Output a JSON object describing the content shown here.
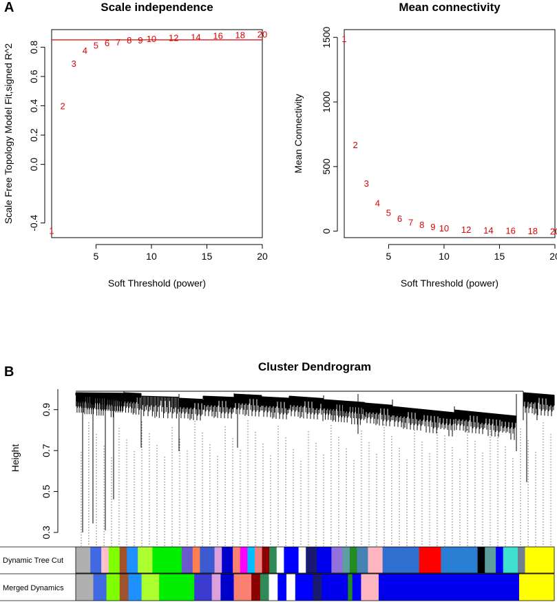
{
  "panels": {
    "a_letter": "A",
    "b_letter": "B"
  },
  "chart_data": [
    {
      "type": "scatter",
      "title": "Scale independence",
      "xlabel": "Soft Threshold (power)",
      "ylabel": "Scale Free Topology Model Fit,signed R^2",
      "xlim": [
        1,
        20
      ],
      "ylim": [
        -0.5,
        0.92
      ],
      "xticks": [
        5,
        10,
        15,
        20
      ],
      "yticks": [
        -0.4,
        0.0,
        0.2,
        0.4,
        0.6,
        0.8
      ],
      "points": [
        {
          "x": 1,
          "y": -0.45,
          "label": "1"
        },
        {
          "x": 2,
          "y": 0.4,
          "label": "2"
        },
        {
          "x": 3,
          "y": 0.69,
          "label": "3"
        },
        {
          "x": 4,
          "y": 0.78,
          "label": "4"
        },
        {
          "x": 5,
          "y": 0.815,
          "label": "5"
        },
        {
          "x": 6,
          "y": 0.83,
          "label": "6"
        },
        {
          "x": 7,
          "y": 0.835,
          "label": "7"
        },
        {
          "x": 8,
          "y": 0.85,
          "label": "8"
        },
        {
          "x": 9,
          "y": 0.85,
          "label": "9"
        },
        {
          "x": 10,
          "y": 0.86,
          "label": "10"
        },
        {
          "x": 12,
          "y": 0.865,
          "label": "12"
        },
        {
          "x": 14,
          "y": 0.87,
          "label": "14"
        },
        {
          "x": 16,
          "y": 0.88,
          "label": "16"
        },
        {
          "x": 18,
          "y": 0.885,
          "label": "18"
        },
        {
          "x": 20,
          "y": 0.89,
          "label": "20"
        }
      ],
      "hline": 0.85,
      "point_color": "#e00000",
      "line_color": "#e00000"
    },
    {
      "type": "scatter",
      "title": "Mean connectivity",
      "xlabel": "Soft Threshold (power)",
      "ylabel": "Mean Connectivity",
      "xlim": [
        1,
        20
      ],
      "ylim": [
        -50,
        1560
      ],
      "xticks": [
        5,
        10,
        15,
        20
      ],
      "yticks": [
        0,
        500,
        1000,
        1500
      ],
      "points": [
        {
          "x": 1,
          "y": 1490,
          "label": "1"
        },
        {
          "x": 2,
          "y": 670,
          "label": "2"
        },
        {
          "x": 3,
          "y": 370,
          "label": "3"
        },
        {
          "x": 4,
          "y": 220,
          "label": "4"
        },
        {
          "x": 5,
          "y": 145,
          "label": "5"
        },
        {
          "x": 6,
          "y": 100,
          "label": "6"
        },
        {
          "x": 7,
          "y": 70,
          "label": "7"
        },
        {
          "x": 8,
          "y": 50,
          "label": "8"
        },
        {
          "x": 9,
          "y": 35,
          "label": "9"
        },
        {
          "x": 10,
          "y": 25,
          "label": "10"
        },
        {
          "x": 12,
          "y": 15,
          "label": "12"
        },
        {
          "x": 14,
          "y": 8,
          "label": "14"
        },
        {
          "x": 16,
          "y": 5,
          "label": "16"
        },
        {
          "x": 18,
          "y": 3,
          "label": "18"
        },
        {
          "x": 20,
          "y": 1,
          "label": "20"
        }
      ],
      "point_color": "#e00000"
    },
    {
      "type": "dendrogram",
      "title": "Cluster Dendrogram",
      "ylabel": "Height",
      "ylim": [
        0.3,
        1.0
      ],
      "yticks": [
        0.3,
        0.5,
        0.7,
        0.9
      ],
      "tracks": [
        {
          "name": "Dynamic Tree Cut",
          "segments": [
            {
              "w": 2,
              "color": "#b0b0b0"
            },
            {
              "w": 1.5,
              "color": "#4169e1"
            },
            {
              "w": 1,
              "color": "#ffc0cb"
            },
            {
              "w": 1.5,
              "color": "#7fff00"
            },
            {
              "w": 1,
              "color": "#a0522d"
            },
            {
              "w": 1.5,
              "color": "#1e90ff"
            },
            {
              "w": 2,
              "color": "#adff2f"
            },
            {
              "w": 4,
              "color": "#00ee00"
            },
            {
              "w": 1.5,
              "color": "#6a5acd"
            },
            {
              "w": 1,
              "color": "#ff7f50"
            },
            {
              "w": 2,
              "color": "#3b5cd0"
            },
            {
              "w": 1,
              "color": "#dda0dd"
            },
            {
              "w": 1.5,
              "color": "#0000cd"
            },
            {
              "w": 1,
              "color": "#fa8072"
            },
            {
              "w": 1,
              "color": "#ff00ff"
            },
            {
              "w": 1,
              "color": "#00bfff"
            },
            {
              "w": 1,
              "color": "#f08080"
            },
            {
              "w": 1,
              "color": "#8b0000"
            },
            {
              "w": 1,
              "color": "#2e8b57"
            },
            {
              "w": 1,
              "color": "#ffffff"
            },
            {
              "w": 2,
              "color": "#0000ff"
            },
            {
              "w": 1,
              "color": "#ffffff"
            },
            {
              "w": 1.5,
              "color": "#191970"
            },
            {
              "w": 2,
              "color": "#0000ee"
            },
            {
              "w": 1.5,
              "color": "#9370db"
            },
            {
              "w": 1,
              "color": "#5f9ea0"
            },
            {
              "w": 1,
              "color": "#228b22"
            },
            {
              "w": 1.5,
              "color": "#4682b4"
            },
            {
              "w": 2,
              "color": "#ffb6c1"
            },
            {
              "w": 5,
              "color": "#2f6fd0"
            },
            {
              "w": 3,
              "color": "#ff0000"
            },
            {
              "w": 5,
              "color": "#2a7fd5"
            },
            {
              "w": 1,
              "color": "#000000"
            },
            {
              "w": 1.5,
              "color": "#5f9ea0"
            },
            {
              "w": 1,
              "color": "#0000ff"
            },
            {
              "w": 2,
              "color": "#40e0d0"
            },
            {
              "w": 1,
              "color": "#708090"
            },
            {
              "w": 4,
              "color": "#ffff00"
            }
          ]
        },
        {
          "name": "Merged Dynamics",
          "segments": [
            {
              "w": 2,
              "color": "#b0b0b0"
            },
            {
              "w": 1.5,
              "color": "#4169e1"
            },
            {
              "w": 1.5,
              "color": "#7fff00"
            },
            {
              "w": 1,
              "color": "#a0522d"
            },
            {
              "w": 1.5,
              "color": "#1e90ff"
            },
            {
              "w": 2,
              "color": "#adff2f"
            },
            {
              "w": 4,
              "color": "#00ee00"
            },
            {
              "w": 2,
              "color": "#3b3bd0"
            },
            {
              "w": 1,
              "color": "#dda0dd"
            },
            {
              "w": 1.5,
              "color": "#0000cd"
            },
            {
              "w": 2,
              "color": "#fa8072"
            },
            {
              "w": 1,
              "color": "#8b0000"
            },
            {
              "w": 1,
              "color": "#2e8b57"
            },
            {
              "w": 1,
              "color": "#ffffff"
            },
            {
              "w": 1,
              "color": "#0000ff"
            },
            {
              "w": 1,
              "color": "#ffffff"
            },
            {
              "w": 2,
              "color": "#0000ff"
            },
            {
              "w": 1,
              "color": "#191970"
            },
            {
              "w": 3,
              "color": "#0000ee"
            },
            {
              "w": 0.5,
              "color": "#228b22"
            },
            {
              "w": 1,
              "color": "#0000ff"
            },
            {
              "w": 2,
              "color": "#ffb6c1"
            },
            {
              "w": 16,
              "color": "#0000ee"
            },
            {
              "w": 4,
              "color": "#ffff00"
            }
          ]
        }
      ]
    }
  ]
}
